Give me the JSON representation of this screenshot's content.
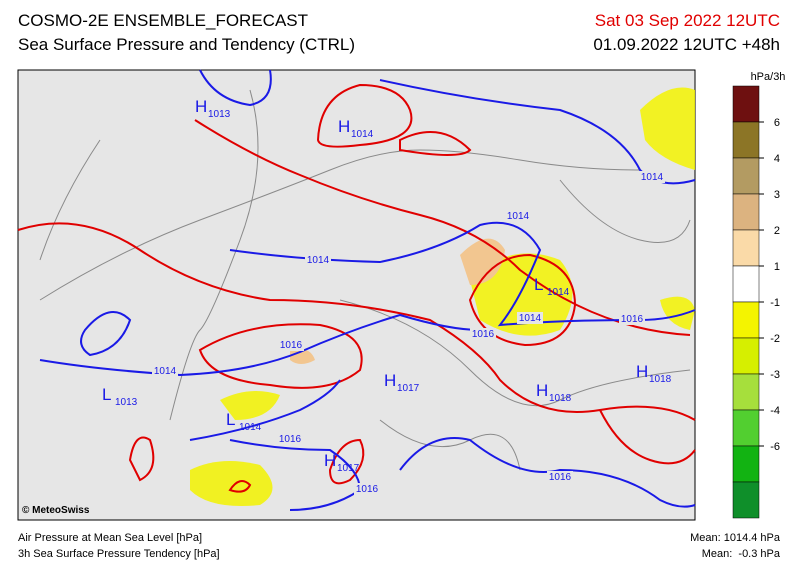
{
  "header": {
    "title": "COSMO-2E ENSEMBLE_FORECAST",
    "subtitle": "Sea Surface Pressure and Tendency (CTRL)",
    "valid": "Sat 03 Sep 2022 12UTC",
    "run": "01.09.2022 12UTC +48h"
  },
  "colorbar": {
    "unit": "hPa/3h",
    "colors": [
      "#6e1010",
      "#8c7526",
      "#b39b62",
      "#dcb380",
      "#fadaa8",
      "#ffffff",
      "#f4f400",
      "#d6ef00",
      "#a6df3c",
      "#52cf30",
      "#12b312",
      "#0f8f2a"
    ],
    "ticks": [
      6,
      4,
      3,
      2,
      1,
      -1,
      -2,
      -3,
      -4,
      -6
    ]
  },
  "pressure_centers": [
    {
      "kind": "H",
      "value": 1013
    },
    {
      "kind": "H",
      "value": 1014
    },
    {
      "kind": "L",
      "value": 1014
    },
    {
      "kind": "L",
      "value": 1013
    },
    {
      "kind": "L",
      "value": 1014
    },
    {
      "kind": "H",
      "value": 1017
    },
    {
      "kind": "H",
      "value": 1018
    },
    {
      "kind": "H",
      "value": 1018
    },
    {
      "kind": "H",
      "value": 1017
    }
  ],
  "isobar_labels": [
    1014,
    1014,
    1014,
    1014,
    1016,
    1016,
    1016,
    1014,
    1016,
    1016,
    1016
  ],
  "credit": "© MeteoSwiss",
  "footer": {
    "left": [
      "Air Pressure at Mean Sea Level [hPa]",
      "3h Sea Surface Pressure Tendency [hPa]"
    ],
    "right": [
      "Mean: 1014.4 hPa",
      "Mean:  -0.3 hPa"
    ]
  }
}
